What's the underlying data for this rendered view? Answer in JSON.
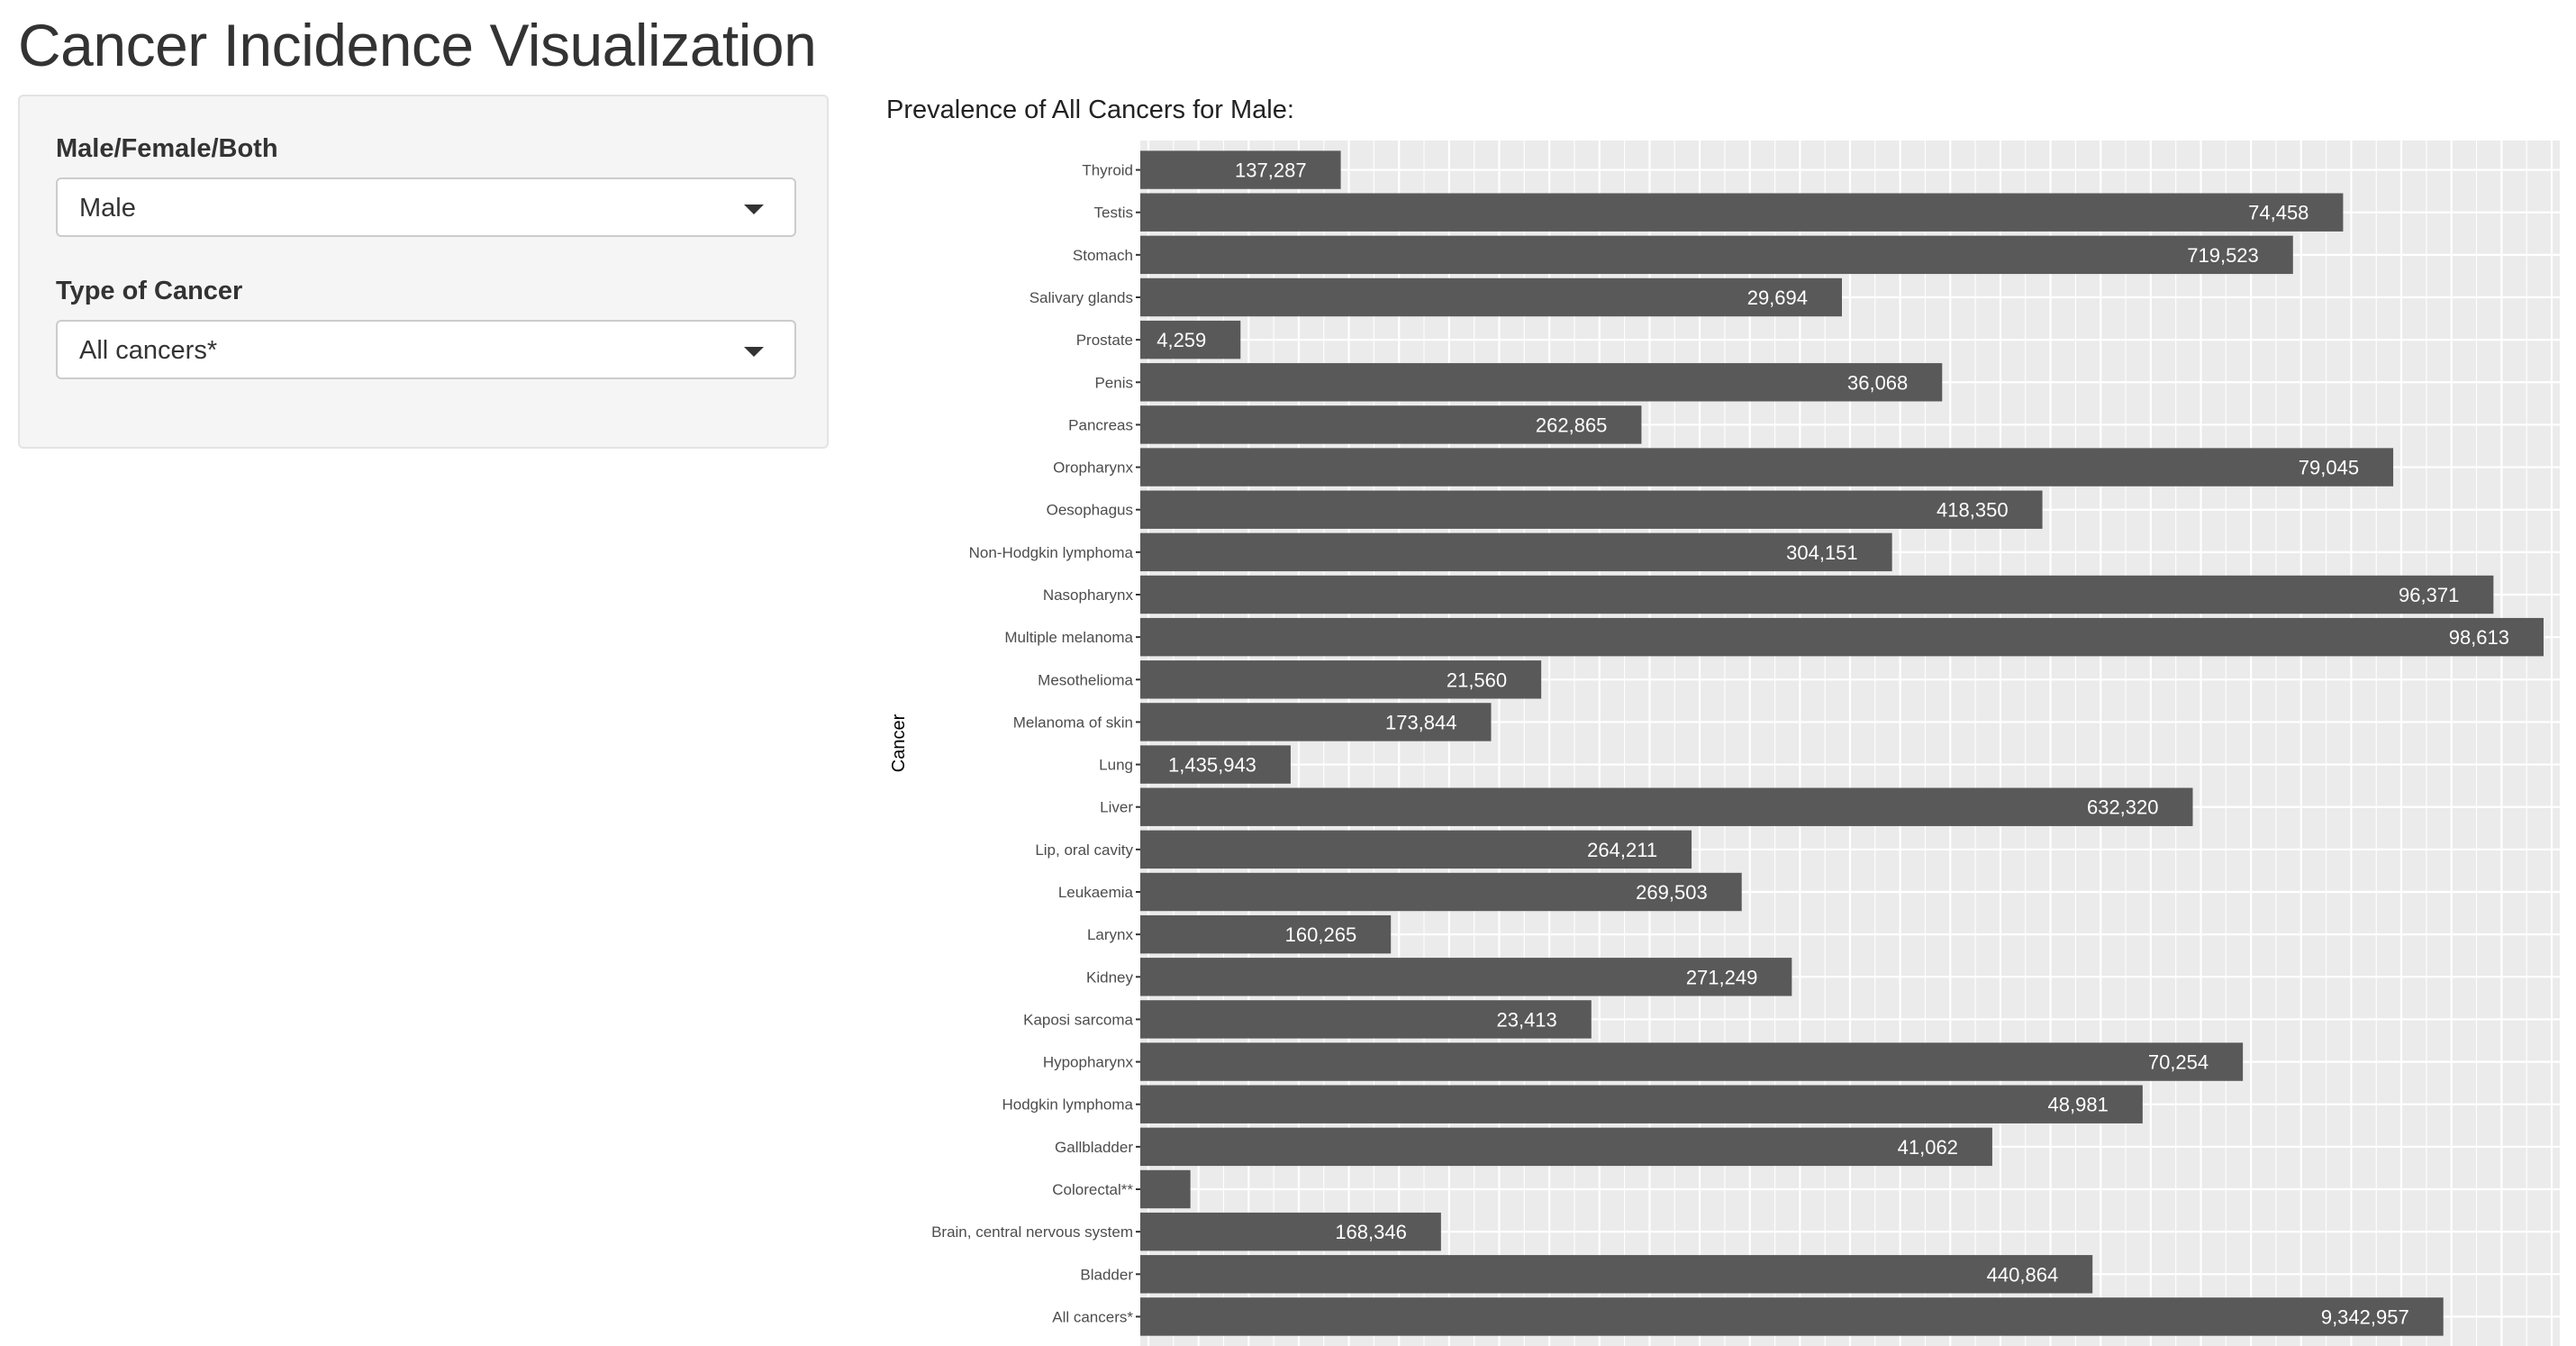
{
  "app": {
    "title": "Cancer Incidence Visualization"
  },
  "sidebar": {
    "sex_label": "Male/Female/Both",
    "sex_value": "Male",
    "cancer_label": "Type of Cancer",
    "cancer_value": "All cancers*"
  },
  "plot": {
    "title": "Prevalence of All Cancers for Male:"
  },
  "colors": {
    "bar": "#595959",
    "panel": "#ebebeb",
    "grid": "#ffffff",
    "bar_label": "#ffffff"
  },
  "chart_data": {
    "type": "bar",
    "orientation": "horizontal",
    "ylabel": "Cancer",
    "grid": true,
    "categories": [
      "Thyroid",
      "Testis",
      "Stomach",
      "Salivary glands",
      "Prostate",
      "Penis",
      "Pancreas",
      "Oropharynx",
      "Oesophagus",
      "Non-Hodgkin lymphoma",
      "Nasopharynx",
      "Multiple melanoma",
      "Mesothelioma",
      "Melanoma of skin",
      "Lung",
      "Liver",
      "Lip, oral cavity",
      "Leukaemia",
      "Larynx",
      "Kidney",
      "Kaposi sarcoma",
      "Hypopharynx",
      "Hodgkin lymphoma",
      "Gallbladder",
      "Colorectal**",
      "Brain, central nervous system",
      "Bladder",
      "All cancers*"
    ],
    "labels": [
      "137,287",
      "74,458",
      "719,523",
      "29,694",
      "4,259",
      "36,068",
      "262,865",
      "79,045",
      "418,350",
      "304,151",
      "96,371",
      "98,613",
      "21,560",
      "173,844",
      "1,435,943",
      "632,320",
      "264,211",
      "269,503",
      "160,265",
      "271,249",
      "23,413",
      "70,254",
      "48,981",
      "41,062",
      "",
      "168,346",
      "440,864",
      "9,342,957"
    ],
    "rank": [
      4,
      24,
      23,
      14,
      2,
      16,
      10,
      25,
      18,
      15,
      27,
      28,
      8,
      7,
      3,
      21,
      11,
      12,
      5,
      13,
      9,
      22,
      20,
      17,
      1,
      6,
      19,
      26
    ]
  }
}
